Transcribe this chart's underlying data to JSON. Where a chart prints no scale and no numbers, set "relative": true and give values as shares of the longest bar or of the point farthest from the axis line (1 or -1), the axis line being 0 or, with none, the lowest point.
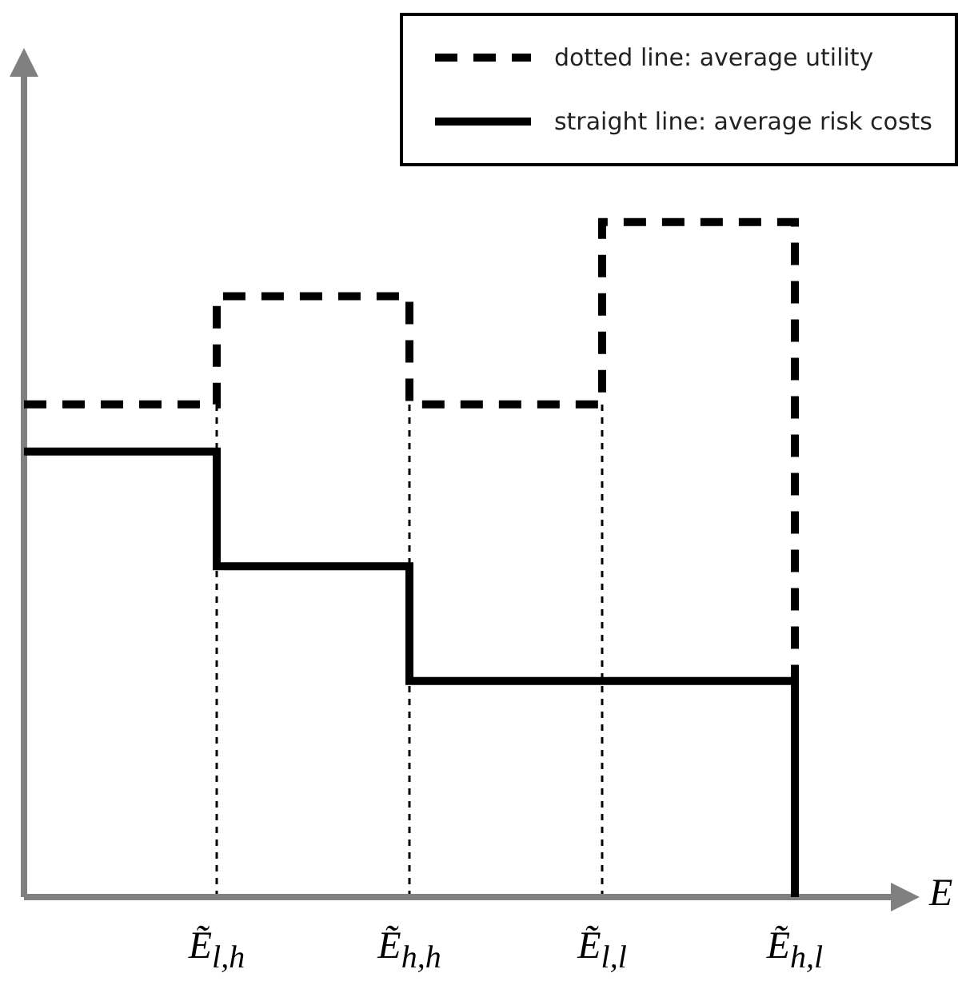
{
  "chart_data": {
    "type": "step",
    "relative": true,
    "xlabel": "E",
    "categories": [
      null,
      "Ẽ$_{l,h}$",
      "Ẽ$_{h,h}$",
      "Ẽ$_{l,l}$",
      "Ẽ$_{h,l}$"
    ],
    "series": [
      {
        "name": "dotted line: average utility",
        "color": "#000000",
        "line_style": "dashed",
        "values": [
          0.73,
          0.89,
          0.73,
          1,
          0
        ]
      },
      {
        "name": "straight line: average risk costs",
        "color": "#000000",
        "line_style": "solid",
        "values": [
          0.66,
          0.49,
          0.32,
          0.32,
          0
        ]
      }
    ],
    "ref_lines": [
      {
        "axis": "x",
        "value": "Ẽ$_{l,h}$",
        "color": "#000000",
        "line_style": "dotted"
      },
      {
        "axis": "x",
        "value": "Ẽ$_{h,h}$",
        "color": "#000000",
        "line_style": "dotted"
      },
      {
        "axis": "x",
        "value": "Ẽ$_{l,l}$",
        "color": "#000000",
        "line_style": "dotted"
      }
    ],
    "legend": "top right",
    "marker": "none"
  }
}
